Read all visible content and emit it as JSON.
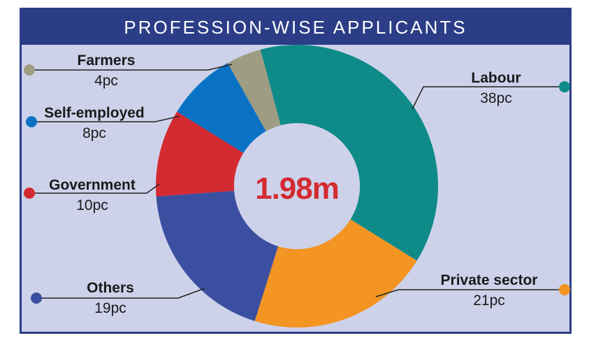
{
  "chart_data": {
    "type": "pie",
    "title": "PROFESSION-WISE APPLICANTS",
    "center_label": "1.98m",
    "slices": [
      {
        "name": "Labour",
        "value": 38,
        "label": "38pc",
        "color": "#0e8a88"
      },
      {
        "name": "Private sector",
        "value": 21,
        "label": "21pc",
        "color": "#f39423"
      },
      {
        "name": "Others",
        "value": 19,
        "label": "19pc",
        "color": "#3b4fa0"
      },
      {
        "name": "Government",
        "value": 10,
        "label": "10pc",
        "color": "#d42a31"
      },
      {
        "name": "Self-employed",
        "value": 8,
        "label": "8pc",
        "color": "#0a72c4"
      },
      {
        "name": "Farmers",
        "value": 4,
        "label": "4pc",
        "color": "#9e9c82"
      }
    ]
  }
}
